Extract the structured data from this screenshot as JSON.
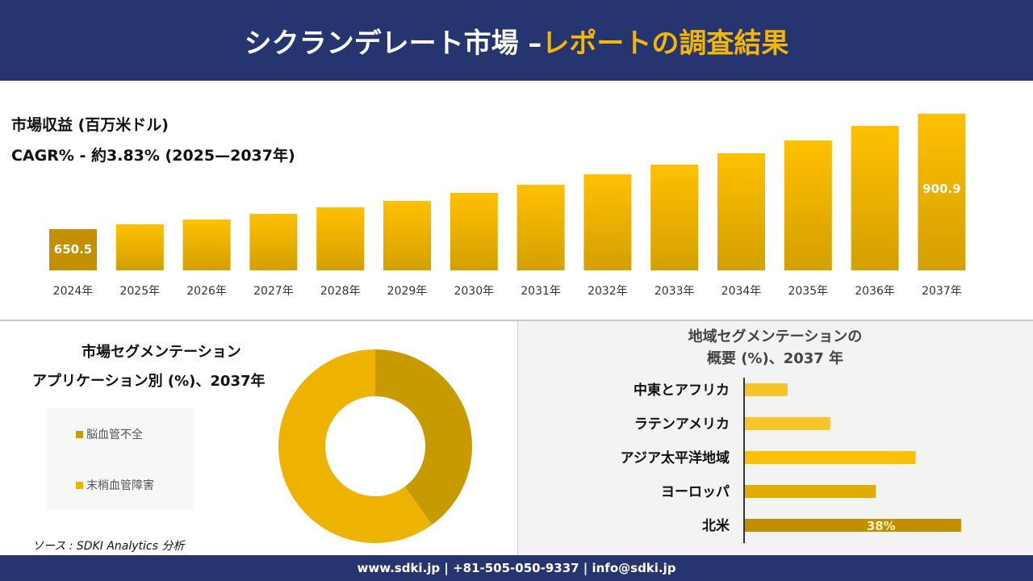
{
  "header": {
    "title_main": "シクランデレート市場 –",
    "title_highlight": "レポートの調査結果"
  },
  "colors": {
    "header_bg": "#263470",
    "accent": "#f5b800",
    "bar": "#f0b400",
    "bar_dark": "#c49000"
  },
  "revenue": {
    "title": "市場収益 (百万米ドル)",
    "cagr": "CAGR% - 約3.83% (2025—2037年)"
  },
  "chart_data": [
    {
      "type": "bar",
      "title": "市場収益 (百万米ドル)",
      "categories": [
        "2024年",
        "2025年",
        "2026年",
        "2027年",
        "2028年",
        "2029年",
        "2030年",
        "2031年",
        "2032年",
        "2033年",
        "2034年",
        "2035年",
        "2036年",
        "2037年"
      ],
      "values": [
        650.5,
        661,
        671.5,
        683.8,
        697.8,
        711.8,
        729.3,
        746.8,
        769.6,
        790.6,
        815.1,
        843.1,
        874.6,
        900.9
      ],
      "data_labels": {
        "0": "650.5",
        "13": "900.9"
      }
    },
    {
      "type": "pie",
      "title": "市場セグメンテーション アプリケーション別 (%)、2037年",
      "labels": [
        "脳血管不全",
        "末梢血管障害"
      ],
      "values": [
        40,
        60
      ],
      "colors": [
        "#c79a00",
        "#eeb300"
      ],
      "legend": "left"
    },
    {
      "type": "bar",
      "orientation": "horizontal",
      "title": "地域セグメンテーションの概要 (%)、2037 年",
      "categories": [
        "中東とアフリカ",
        "ラテンアメリカ",
        "アジア太平洋地域",
        "ヨーロッパ",
        "北米"
      ],
      "values": [
        7.5,
        15,
        30,
        23,
        38
      ],
      "colors": [
        "#f8c32a",
        "#fac52a",
        "#fdc000",
        "#e3ac00",
        "#bf8f00"
      ],
      "data_labels": {
        "4": "38%"
      }
    }
  ],
  "segment": {
    "title1": "市場セグメンテーション",
    "title2": "アプリケーション別 (%)、2037年"
  },
  "region": {
    "title1": "地域セグメンテーションの",
    "title2": "概要 (%)、2037 年"
  },
  "source": "ソース : SDKI Analytics 分析",
  "footer": "www.sdki.jp | +81-505-050-9337 | info@sdki.jp"
}
